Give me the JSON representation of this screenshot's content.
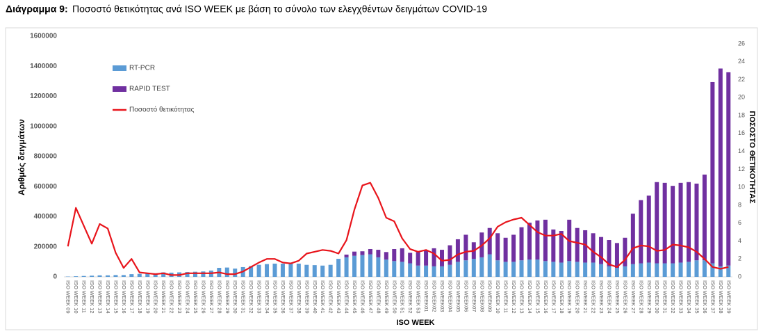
{
  "chart_data": {
    "type": "bar-line",
    "title_prefix": "Διάγραμμα 9:",
    "title": "Ποσοστό θετικότητας ανά ISO WEEK με βάση το σύνολο των ελεγχθέντων δειγμάτων COVID-19",
    "x_label": "ISO WEEK",
    "y_label": "Αριθμός δειγμάτων",
    "y2_label": "ΠΟΣΟΣΤΟ ΘΕΤΙΚΟΤΗΤΑΣ",
    "categories": [
      "ISO WEEK 09",
      "ISO WEEK 10",
      "ISO WEEK 11",
      "ISO WEEK 12",
      "ISO WEEK 13",
      "ISO WEEK 14",
      "ISO WEEK 15",
      "ISO WEEK 16",
      "ISO WEEK 17",
      "ISO WEEK 18",
      "ISO WEEK 19",
      "ISO WEEK 20",
      "ISO WEEK 21",
      "ISO WEEK 22",
      "ISO WEEK 23",
      "ISO WEEK 24",
      "ISO WEEK 25",
      "ISO WEEK 26",
      "ISO WEEK 27",
      "ISO WEEK 28",
      "ISO WEEK 29",
      "ISO WEEK 30",
      "ISO WEEK 31",
      "ISO WEEK 32",
      "ISO WEEK 33",
      "ISO WEEK 34",
      "ISO WEEK 35",
      "ISO WEEK 36",
      "ISO WEEK 37",
      "ISO WEEK 38",
      "ISO WEEK 39",
      "ISO WEEK 40",
      "ISO WEEK 41",
      "ISO WEEK 42",
      "ISO WEEK 43",
      "ISO WEEK 44",
      "ISO WEEK 45",
      "ISO WEEK 46",
      "ISO WEEK 47",
      "ISO WEEK 48",
      "ISO WEEK 49",
      "ISO WEEK 50",
      "ISO WEEK 51",
      "ISO WEEK 52",
      "ISO WEEK 53",
      "ISO WEEK01",
      "ISO WEEK02",
      "ISO WEEK03",
      "ISO WEEK04",
      "ISO WEEK05",
      "ISO WEEK06",
      "ISO WEEK07",
      "ISO WEEK08",
      "ISO WEEK09",
      "ISO WEEK 10",
      "ISO WEEK 11",
      "ISO WEEK 12",
      "ISO WEEK 13",
      "ISO WEEK 14",
      "ISO WEEK 15",
      "ISO WEEK 16",
      "ISO WEEK 17",
      "ISO WEEK 18",
      "ISO WEEK 19",
      "ISO WEEK 20",
      "ISO WEEK 21",
      "ISO WEEK 22",
      "ISO WEEK 23",
      "ISO WEEK 24",
      "ISO WEEK 25",
      "ISO WEEK 26",
      "ISO WEEK 27",
      "ISO WEEK 28",
      "ISO WEEK 29",
      "ISO WEEK 30",
      "ISO WEEK 31",
      "ISO WEEK 32",
      "ISO WEEK 33",
      "ISO WEEK 34",
      "ISO WEEK 35",
      "ISO WEEK 36",
      "ISO WEEK 37",
      "ISO WEEK 38",
      "ISO WEEK 39"
    ],
    "series": [
      {
        "name": "RT-PCR",
        "type": "bar",
        "color": "#5b9bd5",
        "values": [
          2000,
          4000,
          6000,
          8000,
          10000,
          10000,
          12000,
          12000,
          18000,
          20000,
          22000,
          24000,
          30000,
          28000,
          30000,
          32000,
          34000,
          36000,
          42000,
          60000,
          62000,
          55000,
          65000,
          72000,
          80000,
          85000,
          88000,
          88000,
          95000,
          88000,
          80000,
          78000,
          75000,
          80000,
          120000,
          130000,
          140000,
          145000,
          150000,
          130000,
          115000,
          105000,
          100000,
          90000,
          75000,
          75000,
          70000,
          70000,
          80000,
          100000,
          110000,
          120000,
          130000,
          150000,
          110000,
          100000,
          100000,
          110000,
          115000,
          115000,
          105000,
          100000,
          95000,
          105000,
          100000,
          95000,
          95000,
          85000,
          70000,
          60000,
          70000,
          85000,
          90000,
          95000,
          90000,
          90000,
          90000,
          95000,
          100000,
          110000,
          110000,
          90000,
          70000,
          75000
        ]
      },
      {
        "name": "RAPID TEST",
        "type": "bar",
        "color": "#7030a0",
        "values": [
          0,
          0,
          0,
          0,
          0,
          0,
          0,
          0,
          0,
          0,
          0,
          0,
          0,
          0,
          0,
          0,
          0,
          0,
          0,
          0,
          0,
          0,
          0,
          0,
          0,
          0,
          0,
          0,
          0,
          0,
          0,
          0,
          0,
          0,
          0,
          18000,
          28000,
          25000,
          35000,
          50000,
          50000,
          80000,
          90000,
          70000,
          90000,
          103000,
          120000,
          110000,
          130000,
          150000,
          170000,
          110000,
          165000,
          175000,
          180000,
          160000,
          180000,
          220000,
          245000,
          260000,
          275000,
          215000,
          210000,
          275000,
          225000,
          215000,
          195000,
          180000,
          175000,
          165000,
          190000,
          335000,
          420000,
          445000,
          540000,
          535000,
          515000,
          530000,
          530000,
          510000,
          570000,
          1205000,
          1315000,
          1285000
        ]
      },
      {
        "name": "Ποσοστό θετικότητας",
        "type": "line",
        "axis": "y2",
        "color": "#e8141b",
        "values": [
          3.4,
          7.7,
          5.7,
          3.7,
          5.9,
          5.4,
          2.7,
          1.0,
          2.0,
          0.5,
          0.4,
          0.3,
          0.4,
          0.2,
          0.2,
          0.4,
          0.4,
          0.4,
          0.4,
          0.5,
          0.3,
          0.3,
          0.6,
          1.1,
          1.6,
          2.0,
          2.0,
          1.6,
          1.5,
          1.8,
          2.6,
          2.8,
          3.0,
          2.9,
          2.6,
          4.1,
          7.5,
          10.2,
          10.5,
          8.8,
          6.6,
          6.2,
          4.3,
          3.1,
          2.8,
          3.0,
          2.6,
          1.8,
          1.9,
          2.5,
          2.8,
          2.9,
          3.5,
          4.3,
          5.6,
          6.1,
          6.4,
          6.6,
          5.8,
          5.0,
          4.6,
          4.6,
          4.8,
          4.0,
          3.8,
          3.6,
          2.8,
          2.2,
          1.4,
          1.1,
          1.9,
          3.2,
          3.5,
          3.4,
          2.9,
          3.0,
          3.6,
          3.5,
          3.3,
          2.8,
          2.0,
          1.1,
          0.9,
          1.1
        ]
      }
    ],
    "ylim": [
      0,
      1600000
    ],
    "yticks": [
      0,
      200000,
      400000,
      600000,
      800000,
      1000000,
      1200000,
      1400000,
      1600000
    ],
    "y2lim": [
      0,
      26
    ],
    "y2ticks": [
      0,
      2,
      4,
      6,
      8,
      10,
      12,
      14,
      16,
      18,
      20,
      22,
      24,
      26
    ],
    "stacked": true,
    "legend": "upper left"
  }
}
